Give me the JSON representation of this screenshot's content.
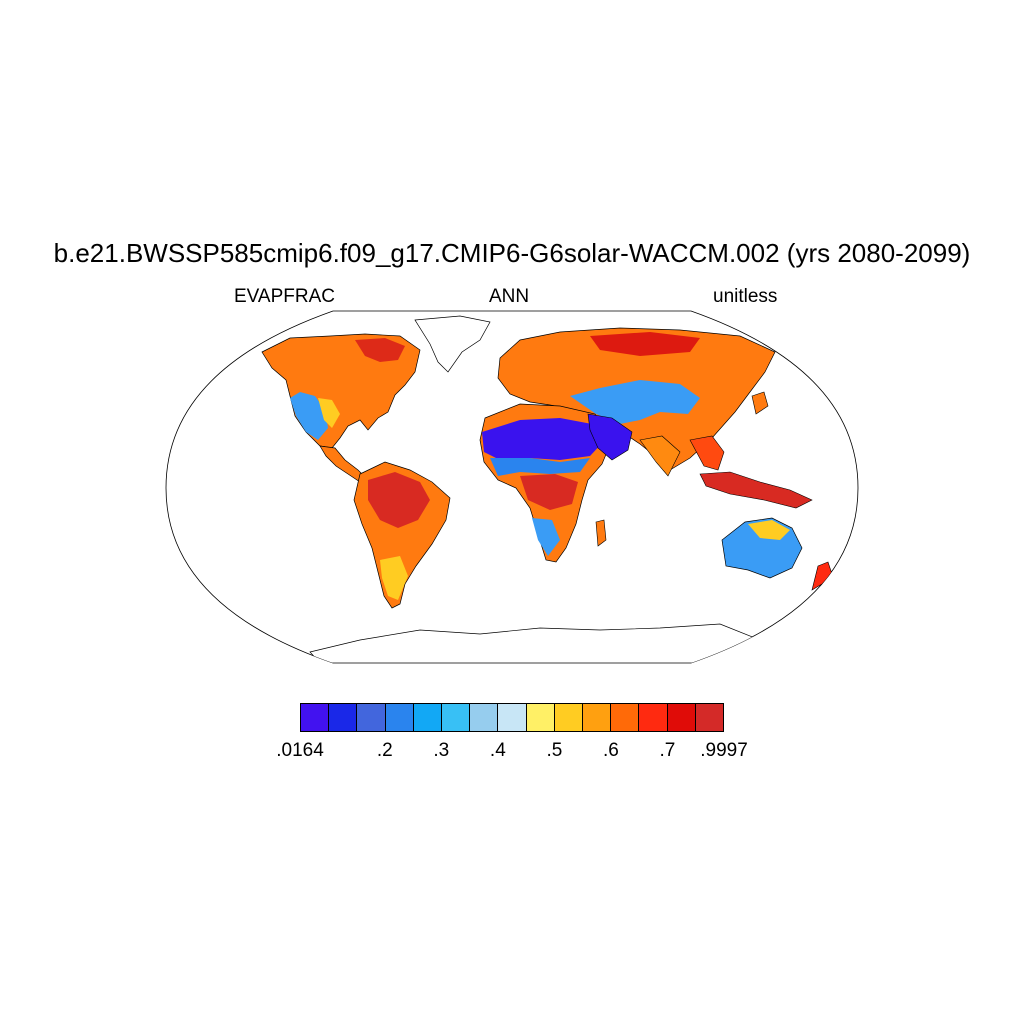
{
  "title": "b.e21.BWSSP585cmip6.f09_g17.CMIP6-G6solar-WACCM.002 (yrs 2080-2099)",
  "left_label": "EVAPFRAC",
  "center_label": "ANN",
  "right_label": "unitless",
  "projection": "Robinson",
  "map_regions": [
    {
      "name": "North America",
      "level": "high",
      "color": "#ff7700"
    },
    {
      "name": "US West",
      "level": "low",
      "color": "#3399ff"
    },
    {
      "name": "Amazon",
      "level": "very high",
      "color": "#dd3322"
    },
    {
      "name": "Sahara",
      "level": "very low",
      "color": "#3a12ee"
    },
    {
      "name": "Central Africa",
      "level": "very high",
      "color": "#dd3322"
    },
    {
      "name": "Arabia",
      "level": "very low",
      "color": "#3a12ee"
    },
    {
      "name": "Central Asia",
      "level": "low",
      "color": "#3399ff"
    },
    {
      "name": "Siberia",
      "level": "high",
      "color": "#ff7700"
    },
    {
      "name": "Australia",
      "level": "low",
      "color": "#3399ff"
    },
    {
      "name": "Maritime Continent",
      "level": "very high",
      "color": "#dd3322"
    }
  ],
  "colorbar": {
    "colors": [
      "#4212f0",
      "#1a28e8",
      "#4266dd",
      "#2a84ee",
      "#12a8f5",
      "#38c0f5",
      "#96cdee",
      "#c8e6f6",
      "#fff066",
      "#ffcc22",
      "#ffa010",
      "#ff6a08",
      "#ff2a10",
      "#e00c08",
      "#d42a28"
    ],
    "labels": [
      {
        "text": ".0164",
        "index": 0
      },
      {
        "text": ".2",
        "index": 3
      },
      {
        "text": ".3",
        "index": 5
      },
      {
        "text": ".4",
        "index": 7
      },
      {
        "text": ".5",
        "index": 9
      },
      {
        "text": ".6",
        "index": 11
      },
      {
        "text": ".7",
        "index": 13
      },
      {
        "text": ".9997",
        "index": 15
      }
    ]
  }
}
